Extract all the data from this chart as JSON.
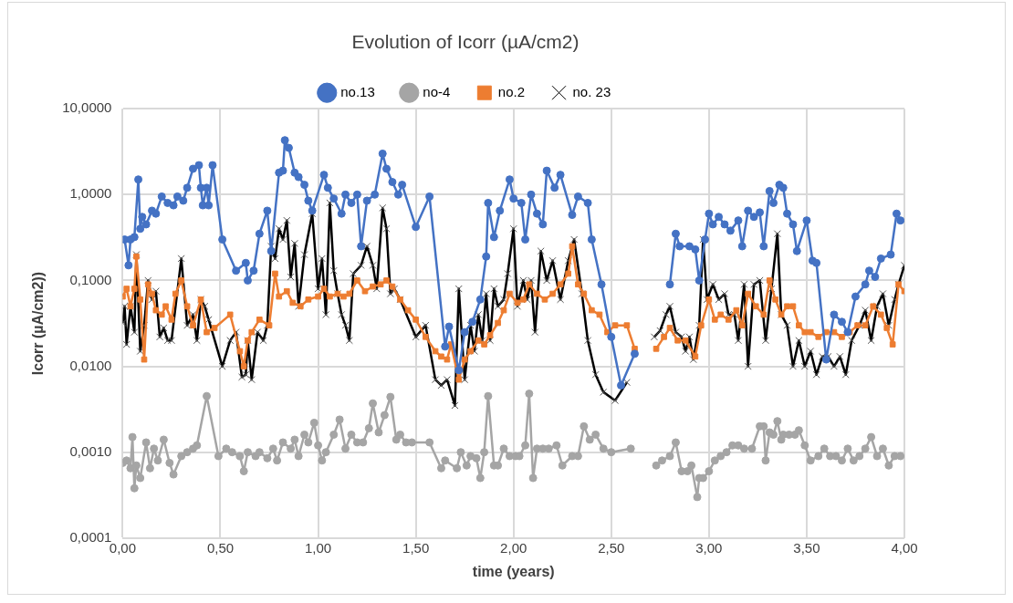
{
  "chart_data": {
    "type": "line",
    "title": "Evolution of Icorr (µA/cm2)",
    "xlabel": "time (years)",
    "ylabel": "Icorr (µA/cm2))",
    "log": "y",
    "grid": true,
    "legend": "top",
    "xlim": [
      0,
      4
    ],
    "xticks": [
      {
        "value": 0,
        "label": "0,00"
      },
      {
        "value": 0.5,
        "label": "0,50"
      },
      {
        "value": 1,
        "label": "1,00"
      },
      {
        "value": 1.5,
        "label": "1,50"
      },
      {
        "value": 2,
        "label": "2,00"
      },
      {
        "value": 2.5,
        "label": "2,50"
      },
      {
        "value": 3,
        "label": "3,00"
      },
      {
        "value": 3.5,
        "label": "3,50"
      },
      {
        "value": 4,
        "label": "4,00"
      }
    ],
    "ylim": [
      0.0001,
      10
    ],
    "yticks": [
      {
        "value": 0.0001,
        "label": "0,0001"
      },
      {
        "value": 0.001,
        "label": "0,0010"
      },
      {
        "value": 0.01,
        "label": "0,0100"
      },
      {
        "value": 0.1,
        "label": "0,1000"
      },
      {
        "value": 1,
        "label": "1,0000"
      },
      {
        "value": 10,
        "label": "10,0000"
      }
    ],
    "series": [
      {
        "name": "no.13",
        "color": "#4472c4",
        "marker": "circle",
        "x": [
          0.01,
          0.03,
          0.04,
          0.06,
          0.08,
          0.09,
          0.1,
          0.12,
          0.15,
          0.17,
          0.2,
          0.23,
          0.26,
          0.28,
          0.31,
          0.33,
          0.36,
          0.39,
          0.4,
          0.41,
          0.43,
          0.44,
          0.46,
          0.51,
          0.58,
          0.63,
          0.64,
          0.67,
          0.7,
          0.74,
          0.76,
          0.8,
          0.82,
          0.83,
          0.85,
          0.88,
          0.9,
          0.93,
          0.95,
          0.97,
          1.03,
          1.05,
          1.08,
          1.12,
          1.14,
          1.17,
          1.2,
          1.22,
          1.25,
          1.29,
          1.33,
          1.35,
          1.38,
          1.41,
          1.43,
          1.5,
          1.57,
          1.65,
          1.67,
          1.72,
          1.75,
          1.79,
          1.83,
          1.86,
          1.87,
          1.9,
          1.93,
          1.98,
          2.0,
          2.04,
          2.06,
          2.09,
          2.12,
          2.15,
          2.17,
          2.21,
          2.24,
          2.3,
          2.33,
          2.38,
          2.4,
          2.45,
          2.5,
          2.55,
          2.62,
          2.7,
          2.8,
          2.83,
          2.85,
          2.9,
          2.93,
          2.95,
          2.98,
          3.0,
          3.02,
          3.05,
          3.08,
          3.11,
          3.15,
          3.17,
          3.2,
          3.23,
          3.26,
          3.28,
          3.31,
          3.33,
          3.36,
          3.38,
          3.4,
          3.43,
          3.45,
          3.5,
          3.53,
          3.55,
          3.6,
          3.64,
          3.68,
          3.71,
          3.75,
          3.8,
          3.82,
          3.85,
          3.88,
          3.93,
          3.96,
          3.98
        ],
        "values": [
          0.3,
          0.15,
          0.3,
          0.32,
          1.5,
          0.4,
          0.55,
          0.45,
          0.65,
          0.6,
          0.95,
          0.8,
          0.75,
          0.95,
          0.85,
          1.2,
          2,
          2.2,
          1.2,
          0.75,
          1.2,
          0.75,
          2.2,
          0.3,
          0.13,
          0.16,
          0.1,
          0.13,
          0.35,
          0.65,
          0.22,
          1.8,
          1.9,
          4.3,
          3.5,
          1.8,
          1.6,
          1.3,
          0.85,
          0.65,
          1.7,
          1.2,
          0.9,
          0.6,
          1,
          0.8,
          1,
          0.25,
          0.85,
          1,
          3,
          2,
          1.4,
          1,
          1.3,
          0.42,
          0.95,
          0.017,
          0.029,
          0.009,
          0.025,
          0.033,
          0.06,
          0.19,
          0.8,
          0.32,
          0.65,
          1.5,
          0.9,
          0.8,
          0.3,
          1,
          0.6,
          0.45,
          1.9,
          1.2,
          1.7,
          0.58,
          0.95,
          0.8,
          0.3,
          0.09,
          0.022,
          0.006,
          0.014,
          null,
          0.09,
          0.35,
          0.25,
          0.25,
          0.23,
          0.1,
          0.3,
          0.6,
          0.45,
          0.55,
          0.45,
          0.38,
          0.5,
          0.25,
          0.65,
          0.55,
          0.62,
          0.25,
          1.1,
          0.8,
          1.3,
          1.2,
          0.6,
          0.45,
          0.22,
          0.5,
          0.17,
          0.16,
          0.012,
          0.04,
          0.033,
          0.025,
          0.065,
          0.09,
          0.13,
          0.11,
          0.18,
          0.2,
          0.6,
          0.5
        ]
      },
      {
        "name": "no-4",
        "color": "#a5a5a5",
        "marker": "circle",
        "x": [
          0.0,
          0.02,
          0.04,
          0.05,
          0.06,
          0.07,
          0.09,
          0.12,
          0.14,
          0.16,
          0.18,
          0.21,
          0.24,
          0.26,
          0.3,
          0.33,
          0.36,
          0.38,
          0.43,
          0.49,
          0.53,
          0.56,
          0.6,
          0.62,
          0.64,
          0.68,
          0.7,
          0.74,
          0.77,
          0.79,
          0.82,
          0.86,
          0.88,
          0.9,
          0.93,
          0.95,
          0.98,
          1.0,
          1.02,
          1.04,
          1.08,
          1.11,
          1.14,
          1.17,
          1.2,
          1.23,
          1.26,
          1.28,
          1.31,
          1.34,
          1.37,
          1.4,
          1.42,
          1.45,
          1.48,
          1.57,
          1.63,
          1.65,
          1.71,
          1.73,
          1.76,
          1.78,
          1.81,
          1.83,
          1.85,
          1.87,
          1.9,
          1.92,
          1.95,
          1.98,
          2.01,
          2.03,
          2.06,
          2.08,
          2.1,
          2.12,
          2.15,
          2.18,
          2.22,
          2.25,
          2.3,
          2.33,
          2.36,
          2.39,
          2.42,
          2.46,
          2.5,
          2.6,
          2.67,
          2.73,
          2.76,
          2.8,
          2.83,
          2.86,
          2.89,
          2.91,
          2.94,
          2.95,
          2.97,
          3.0,
          3.03,
          3.06,
          3.09,
          3.12,
          3.15,
          3.18,
          3.22,
          3.26,
          3.28,
          3.29,
          3.31,
          3.33,
          3.35,
          3.37,
          3.38,
          3.41,
          3.44,
          3.46,
          3.49,
          3.52,
          3.56,
          3.59,
          3.62,
          3.65,
          3.68,
          3.71,
          3.74,
          3.77,
          3.8,
          3.83,
          3.86,
          3.89,
          3.92,
          3.95,
          3.98
        ],
        "values": [
          0.00075,
          0.0008,
          0.00065,
          0.0015,
          0.00038,
          0.0007,
          0.0005,
          0.0013,
          0.00065,
          0.0011,
          0.0008,
          0.0014,
          0.00075,
          0.00055,
          0.0009,
          0.001,
          0.0011,
          0.0012,
          0.0045,
          0.0009,
          0.0011,
          0.001,
          0.0009,
          0.0006,
          0.001,
          0.0009,
          0.001,
          0.00085,
          0.0011,
          0.0008,
          0.0013,
          0.0011,
          0.0014,
          0.0009,
          0.0016,
          0.0013,
          0.0022,
          0.0012,
          0.0008,
          0.001,
          0.0016,
          0.0024,
          0.0011,
          0.0016,
          0.0013,
          0.0013,
          0.0019,
          0.0037,
          0.0017,
          0.0027,
          0.0044,
          0.0014,
          0.0016,
          0.0013,
          0.0013,
          0.0013,
          0.00065,
          0.0008,
          0.00065,
          0.001,
          0.0007,
          0.0009,
          0.00085,
          0.0005,
          0.001,
          0.0045,
          0.0007,
          0.0007,
          0.0011,
          0.0009,
          0.0009,
          0.0009,
          0.0012,
          0.0048,
          0.0005,
          0.0011,
          0.0011,
          0.0011,
          0.0012,
          0.0007,
          0.0009,
          0.0009,
          0.002,
          0.0014,
          0.0016,
          0.0011,
          0.001,
          0.0011,
          null,
          0.0007,
          0.0008,
          0.0009,
          0.0013,
          0.0006,
          0.0006,
          0.0007,
          0.0003,
          0.0005,
          0.0005,
          0.0006,
          0.0008,
          0.0009,
          0.001,
          0.0012,
          0.0012,
          0.0011,
          0.0011,
          0.002,
          0.002,
          0.0008,
          0.0017,
          0.0016,
          0.0023,
          0.0014,
          0.0016,
          0.0016,
          0.0016,
          0.0018,
          0.0012,
          0.0008,
          0.0009,
          0.0011,
          0.0009,
          0.0009,
          0.0008,
          0.0011,
          0.0008,
          0.0009,
          0.0011,
          0.0015,
          0.0009,
          0.0011,
          0.0007,
          0.0009,
          0.0009
        ]
      },
      {
        "name": "no.2",
        "color": "#ed7d31",
        "marker": "square",
        "x": [
          0.0,
          0.02,
          0.04,
          0.06,
          0.07,
          0.09,
          0.11,
          0.13,
          0.15,
          0.17,
          0.2,
          0.22,
          0.25,
          0.27,
          0.3,
          0.33,
          0.36,
          0.4,
          0.43,
          0.47,
          0.55,
          0.6,
          0.62,
          0.64,
          0.66,
          0.7,
          0.75,
          0.78,
          0.8,
          0.84,
          0.87,
          0.91,
          0.95,
          1.0,
          1.03,
          1.06,
          1.1,
          1.13,
          1.16,
          1.2,
          1.24,
          1.28,
          1.32,
          1.35,
          1.38,
          1.42,
          1.46,
          1.5,
          1.55,
          1.6,
          1.63,
          1.66,
          1.68,
          1.72,
          1.75,
          1.78,
          1.82,
          1.85,
          1.88,
          1.92,
          1.95,
          1.98,
          2.02,
          2.05,
          2.08,
          2.12,
          2.16,
          2.2,
          2.24,
          2.28,
          2.3,
          2.33,
          2.36,
          2.4,
          2.44,
          2.48,
          2.52,
          2.58,
          2.62,
          2.68,
          2.73,
          2.77,
          2.8,
          2.84,
          2.88,
          2.93,
          2.96,
          3.0,
          3.03,
          3.06,
          3.1,
          3.14,
          3.17,
          3.2,
          3.24,
          3.28,
          3.31,
          3.34,
          3.37,
          3.4,
          3.43,
          3.46,
          3.49,
          3.52,
          3.56,
          3.6,
          3.64,
          3.68,
          3.72,
          3.76,
          3.8,
          3.84,
          3.88,
          3.91,
          3.94,
          3.97,
          4.0
        ],
        "values": [
          0.065,
          0.08,
          0.05,
          0.08,
          0.19,
          0.06,
          0.012,
          0.09,
          0.07,
          0.045,
          0.04,
          0.05,
          0.035,
          0.07,
          0.1,
          0.05,
          0.03,
          0.06,
          0.025,
          0.028,
          0.04,
          0.015,
          0.01,
          0.02,
          0.025,
          0.035,
          0.03,
          0.12,
          0.065,
          0.075,
          0.055,
          0.05,
          0.06,
          0.065,
          0.08,
          0.065,
          0.07,
          0.065,
          0.07,
          0.1,
          0.075,
          0.085,
          0.09,
          0.1,
          0.085,
          0.06,
          0.045,
          0.035,
          0.022,
          0.015,
          0.013,
          0.012,
          0.018,
          0.007,
          0.012,
          0.015,
          0.02,
          0.018,
          0.023,
          0.032,
          0.045,
          0.07,
          0.055,
          0.06,
          0.09,
          0.07,
          0.06,
          0.07,
          0.09,
          0.12,
          0.25,
          0.09,
          0.07,
          0.045,
          0.04,
          0.025,
          0.03,
          0.03,
          0.016,
          null,
          0.016,
          0.022,
          0.028,
          0.02,
          0.02,
          0.013,
          0.03,
          0.06,
          0.035,
          0.04,
          0.035,
          0.045,
          0.03,
          0.07,
          0.05,
          0.04,
          0.1,
          0.06,
          0.04,
          0.05,
          0.05,
          0.03,
          0.025,
          0.025,
          0.022,
          0.025,
          0.025,
          0.022,
          0.025,
          0.03,
          0.03,
          0.05,
          0.04,
          0.028,
          0.018,
          0.09,
          0.075
        ]
      },
      {
        "name": "no. 23",
        "color": "#000000",
        "marker": "cross",
        "x": [
          0.0,
          0.01,
          0.02,
          0.04,
          0.06,
          0.07,
          0.09,
          0.11,
          0.13,
          0.15,
          0.17,
          0.19,
          0.21,
          0.23,
          0.25,
          0.3,
          0.33,
          0.36,
          0.38,
          0.4,
          0.42,
          0.44,
          0.51,
          0.55,
          0.58,
          0.61,
          0.63,
          0.64,
          0.66,
          0.69,
          0.72,
          0.74,
          0.76,
          0.78,
          0.8,
          0.82,
          0.84,
          0.86,
          0.88,
          0.9,
          0.93,
          0.97,
          1.0,
          1.02,
          1.04,
          1.06,
          1.08,
          1.1,
          1.12,
          1.14,
          1.16,
          1.18,
          1.22,
          1.25,
          1.28,
          1.3,
          1.33,
          1.35,
          1.37,
          1.39,
          1.42,
          1.5,
          1.55,
          1.6,
          1.63,
          1.66,
          1.7,
          1.72,
          1.75,
          1.78,
          1.8,
          1.82,
          1.84,
          1.86,
          1.88,
          1.9,
          1.92,
          1.95,
          1.97,
          2.0,
          2.02,
          2.05,
          2.07,
          2.09,
          2.11,
          2.14,
          2.17,
          2.2,
          2.24,
          2.28,
          2.31,
          2.35,
          2.38,
          2.42,
          2.46,
          2.52,
          2.58,
          2.65,
          2.72,
          2.75,
          2.78,
          2.8,
          2.83,
          2.86,
          2.88,
          2.9,
          2.92,
          2.95,
          2.97,
          2.99,
          3.02,
          3.05,
          3.08,
          3.1,
          3.13,
          3.15,
          3.18,
          3.2,
          3.23,
          3.26,
          3.29,
          3.32,
          3.35,
          3.37,
          3.4,
          3.43,
          3.46,
          3.49,
          3.52,
          3.55,
          3.58,
          3.61,
          3.64,
          3.67,
          3.7,
          3.73,
          3.77,
          3.8,
          3.83,
          3.86,
          3.89,
          3.92,
          3.95,
          3.97,
          4.0
        ],
        "values": [
          0.032,
          0.05,
          0.018,
          0.05,
          0.025,
          0.2,
          0.015,
          0.03,
          0.1,
          0.06,
          0.075,
          0.022,
          0.028,
          0.02,
          0.02,
          0.18,
          0.03,
          0.04,
          0.02,
          0.06,
          0.05,
          0.035,
          0.01,
          0.02,
          0.025,
          0.0075,
          0.008,
          0.02,
          0.007,
          0.025,
          0.02,
          0.03,
          0.25,
          0.18,
          0.4,
          0.3,
          0.5,
          0.11,
          0.27,
          0.05,
          0.2,
          0.6,
          0.08,
          0.18,
          0.04,
          0.8,
          0.13,
          0.07,
          0.04,
          0.03,
          0.02,
          0.12,
          0.15,
          0.25,
          0.15,
          0.08,
          0.7,
          0.4,
          0.07,
          0.08,
          0.06,
          0.022,
          0.03,
          0.007,
          0.006,
          0.007,
          0.0035,
          0.08,
          0.007,
          0.03,
          0.015,
          0.04,
          0.02,
          0.07,
          0.02,
          0.08,
          0.05,
          0.06,
          0.12,
          0.4,
          0.05,
          0.1,
          0.06,
          0.1,
          0.025,
          0.22,
          0.1,
          0.17,
          0.06,
          0.17,
          0.3,
          0.07,
          0.02,
          0.008,
          0.005,
          0.004,
          0.0065,
          null,
          0.022,
          0.026,
          0.04,
          0.05,
          0.025,
          0.022,
          0.015,
          0.022,
          0.012,
          0.03,
          0.3,
          0.06,
          0.09,
          0.06,
          0.07,
          0.04,
          0.04,
          0.02,
          0.09,
          0.01,
          0.09,
          0.1,
          0.02,
          0.08,
          0.35,
          0.04,
          0.03,
          0.01,
          0.02,
          0.01,
          0.015,
          0.008,
          0.013,
          0.013,
          0.01,
          0.013,
          0.008,
          0.02,
          0.03,
          0.045,
          0.02,
          0.05,
          0.07,
          0.03,
          0.06,
          0.09,
          0.15
        ]
      }
    ]
  }
}
